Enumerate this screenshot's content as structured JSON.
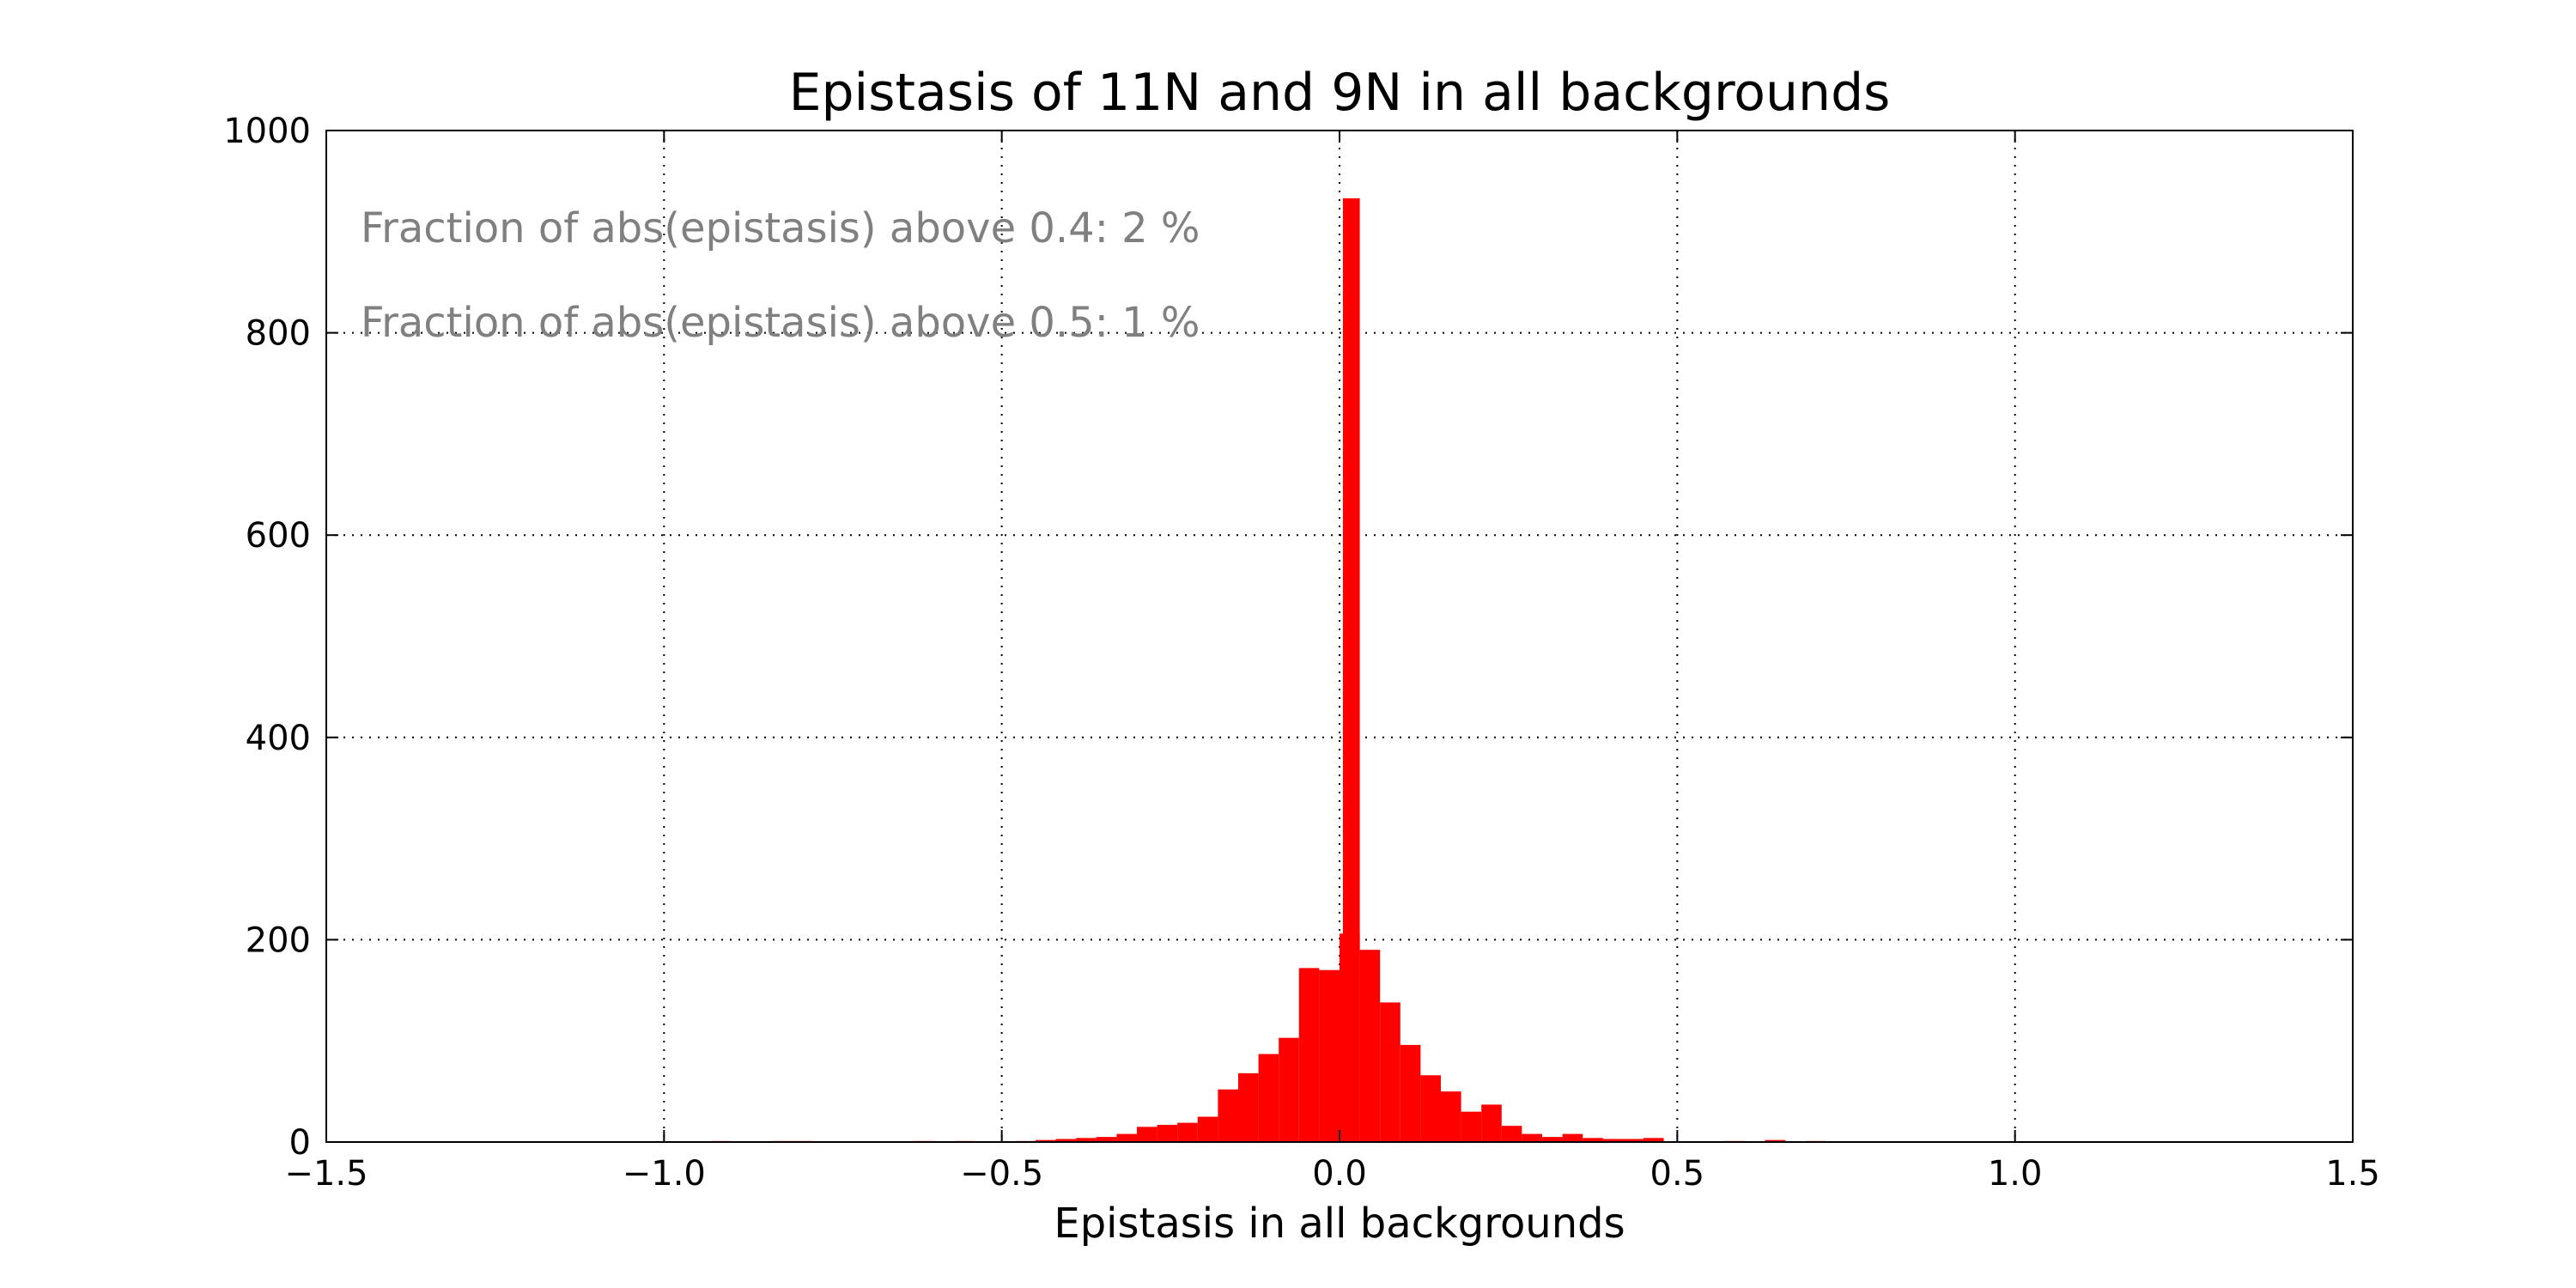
{
  "chart_data": {
    "type": "bar",
    "title": "Epistasis of 11N and 9N in all backgrounds",
    "xlabel": "Epistasis in all backgrounds",
    "ylabel": "",
    "xlim": [
      -1.5,
      1.5
    ],
    "ylim": [
      0,
      1000
    ],
    "xticks": [
      -1.5,
      -1.0,
      -0.5,
      0.0,
      0.5,
      1.0,
      1.5
    ],
    "xtick_labels": [
      "−1.5",
      "−1.0",
      "−0.5",
      "0.0",
      "0.5",
      "1.0",
      "1.5"
    ],
    "yticks": [
      0,
      200,
      400,
      600,
      800,
      1000
    ],
    "ytick_labels": [
      "0",
      "200",
      "400",
      "600",
      "800",
      "1000"
    ],
    "grid": true,
    "bar_color": "#ff0000",
    "bin_width": 0.03,
    "bins": [
      {
        "x": -0.915,
        "y": 1
      },
      {
        "x": -0.825,
        "y": 1
      },
      {
        "x": -0.795,
        "y": 1
      },
      {
        "x": -0.615,
        "y": 1
      },
      {
        "x": -0.555,
        "y": 1
      },
      {
        "x": -0.465,
        "y": 1
      },
      {
        "x": -0.435,
        "y": 2
      },
      {
        "x": -0.405,
        "y": 3
      },
      {
        "x": -0.375,
        "y": 4
      },
      {
        "x": -0.345,
        "y": 5
      },
      {
        "x": -0.315,
        "y": 8
      },
      {
        "x": -0.285,
        "y": 15
      },
      {
        "x": -0.255,
        "y": 17
      },
      {
        "x": -0.225,
        "y": 19
      },
      {
        "x": -0.195,
        "y": 25
      },
      {
        "x": -0.165,
        "y": 52
      },
      {
        "x": -0.135,
        "y": 68
      },
      {
        "x": -0.105,
        "y": 87
      },
      {
        "x": -0.075,
        "y": 103
      },
      {
        "x": -0.045,
        "y": 172
      },
      {
        "x": -0.015,
        "y": 170
      },
      {
        "x": 0.015,
        "y": 206
      },
      {
        "x": 0.045,
        "y": 190
      },
      {
        "x": 0.075,
        "y": 138
      },
      {
        "x": 0.105,
        "y": 96
      },
      {
        "x": 0.135,
        "y": 66
      },
      {
        "x": 0.165,
        "y": 50
      },
      {
        "x": 0.195,
        "y": 30
      },
      {
        "x": 0.225,
        "y": 37
      },
      {
        "x": 0.255,
        "y": 16
      },
      {
        "x": 0.285,
        "y": 8
      },
      {
        "x": 0.315,
        "y": 5
      },
      {
        "x": 0.345,
        "y": 8
      },
      {
        "x": 0.375,
        "y": 4
      },
      {
        "x": 0.405,
        "y": 3
      },
      {
        "x": 0.435,
        "y": 3
      },
      {
        "x": 0.465,
        "y": 4
      },
      {
        "x": 0.585,
        "y": 1
      },
      {
        "x": 0.645,
        "y": 2
      },
      {
        "x": 0.705,
        "y": 1
      }
    ],
    "spike": {
      "x_start": 0.005,
      "x_end": 0.03,
      "y": 933
    },
    "annotations": [
      "Fraction of abs(epistasis) above 0.4: 2 %",
      "Fraction of abs(epistasis) above 0.5: 1 %"
    ]
  }
}
